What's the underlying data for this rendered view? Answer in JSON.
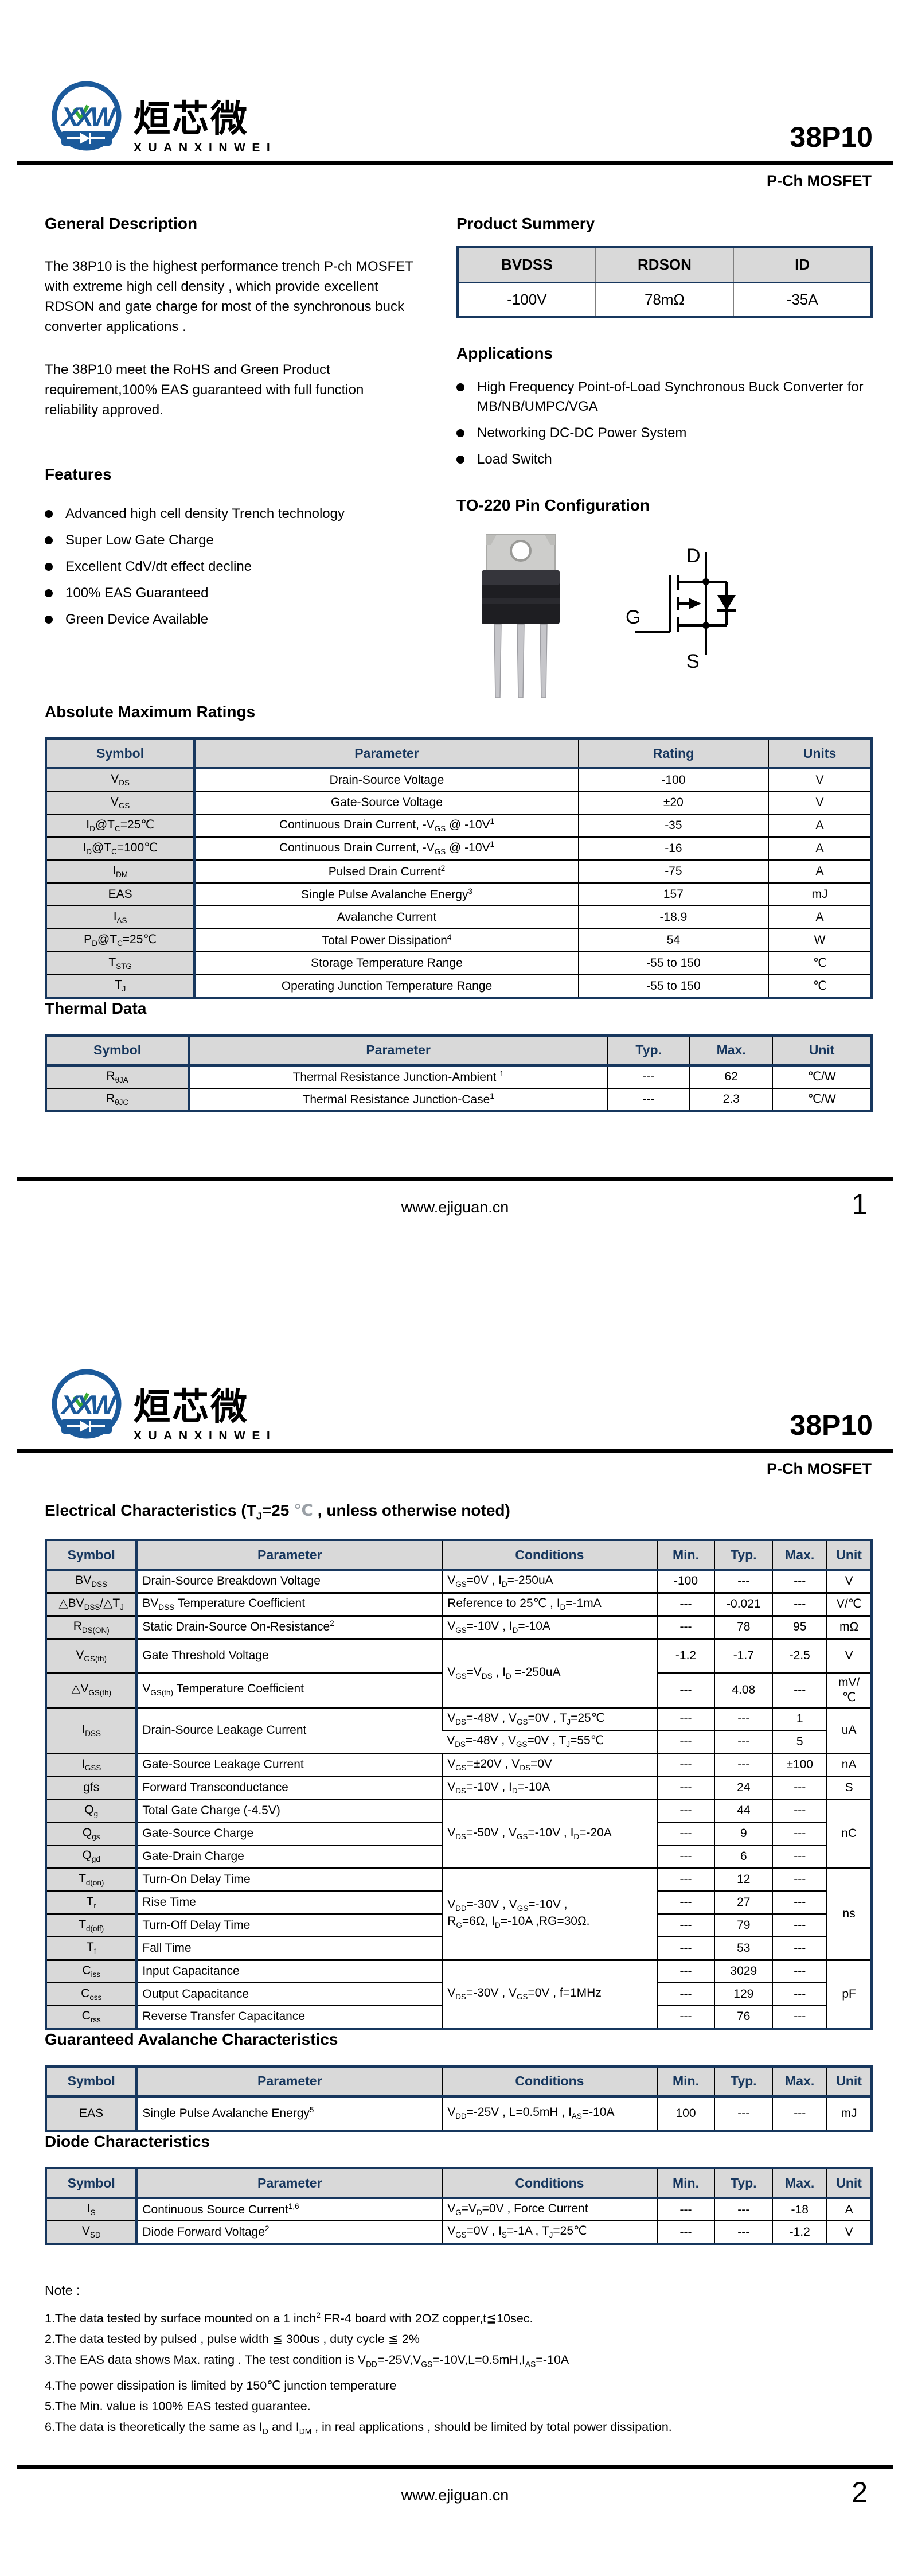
{
  "brand": {
    "logo_monogram": "XXW",
    "logo_cn": "烜芯微",
    "logo_en": "XUANXINWEI",
    "part_number": "38P10",
    "device_type": "P-Ch MOSFET"
  },
  "colors": {
    "navy": "#17375e",
    "logo_blue": "#1b5a9b",
    "logo_green": "#3aa935",
    "header_gray": "#d9d9d9"
  },
  "footer": {
    "website": "www.ejiguan.cn",
    "page1_number": "1",
    "page2_number": "2"
  },
  "page1": {
    "general_description": {
      "title": "General Description",
      "para1": "The  38P10  is the highest performance trench P-ch MOSFET with extreme high cell density , which provide excellent RDSON and gate charge for most of the synchronous buck converter applications .",
      "para2": "The  38P10  meet the RoHS and Green Product requirement,100% EAS guaranteed with full function reliability approved."
    },
    "features": {
      "title": "Features",
      "items": [
        "Advanced high cell density Trench technology",
        "Super Low Gate Charge",
        "Excellent CdV/dt effect decline",
        "100% EAS Guaranteed",
        "Green Device Available"
      ]
    },
    "product_summary": {
      "title": "Product Summery",
      "headers": [
        "BVDSS",
        "RDSON",
        "ID"
      ],
      "values": [
        "-100V",
        "78mΩ",
        "-35A"
      ]
    },
    "applications": {
      "title": "Applications",
      "items": [
        "High Frequency Point-of-Load Synchronous Buck Converter for MB/NB/UMPC/VGA",
        "Networking DC-DC Power System",
        "Load Switch"
      ]
    },
    "pin_config": {
      "title": "TO-220 Pin Configuration",
      "drain_label": "D",
      "gate_label": "G",
      "source_label": "S"
    },
    "amr": {
      "title": "Absolute Maximum Ratings",
      "headers": [
        "Symbol",
        "Parameter",
        "Rating",
        "Units"
      ],
      "rows": [
        {
          "sym": "V<sub>DS</sub>",
          "par": "Drain-Source Voltage",
          "rating": "-100",
          "unit": "V"
        },
        {
          "sym": "V<sub>GS</sub>",
          "par": "Gate-Source Voltage",
          "rating": "±20",
          "unit": "V"
        },
        {
          "sym": "I<sub>D</sub>@T<sub>C</sub>=25℃",
          "par": "Continuous Drain Current, -V<sub>GS</sub> @ -10V<sup>1</sup>",
          "rating": "-35",
          "unit": "A"
        },
        {
          "sym": "I<sub>D</sub>@T<sub>C</sub>=100℃",
          "par": "Continuous Drain Current, -V<sub>GS</sub> @ -10V<sup>1</sup>",
          "rating": "-16",
          "unit": "A"
        },
        {
          "sym": "I<sub>DM</sub>",
          "par": "Pulsed Drain Current<sup>2</sup>",
          "rating": "-75",
          "unit": "A"
        },
        {
          "sym": "EAS",
          "par": "Single Pulse Avalanche Energy<sup>3</sup>",
          "rating": "157",
          "unit": "mJ"
        },
        {
          "sym": "I<sub>AS</sub>",
          "par": "Avalanche Current",
          "rating": "-18.9",
          "unit": "A"
        },
        {
          "sym": "P<sub>D</sub>@T<sub>C</sub>=25℃",
          "par": "Total Power Dissipation<sup>4</sup>",
          "rating": "54",
          "unit": "W"
        },
        {
          "sym": "T<sub>STG</sub>",
          "par": "Storage Temperature Range",
          "rating": "-55 to 150",
          "unit": "℃"
        },
        {
          "sym": "T<sub>J</sub>",
          "par": "Operating Junction Temperature Range",
          "rating": "-55 to 150",
          "unit": "℃"
        }
      ]
    },
    "thermal": {
      "title": "Thermal Data",
      "headers": [
        "Symbol",
        "Parameter",
        "Typ.",
        "Max.",
        "Unit"
      ],
      "rows": [
        {
          "sym": "R<sub>θJA</sub>",
          "par": "Thermal Resistance Junction-Ambient <sup>1</sup>",
          "typ": "---",
          "max": "62",
          "unit": "℃/W"
        },
        {
          "sym": "R<sub>θJC</sub>",
          "par": "Thermal Resistance Junction-Case<sup>1</sup>",
          "typ": "---",
          "max": "2.3",
          "unit": "℃/W"
        }
      ]
    }
  },
  "page2": {
    "ec": {
      "title_html": "Electrical Characteristics (T<sub>J</sub>=25 <span class=\"light\">℃</span> , unless otherwise noted)",
      "headers": [
        "Symbol",
        "Parameter",
        "Conditions",
        "Min.",
        "Typ.",
        "Max.",
        "Unit"
      ],
      "rows": [
        {
          "sym": "BV<sub>DSS</sub>",
          "par": "Drain-Source Breakdown Voltage",
          "cond": "V<sub>GS</sub>=0V , I<sub>D</sub>=-250uA",
          "min": "-100",
          "typ": "---",
          "max": "---",
          "unit": "V"
        },
        {
          "sym": "△BV<sub>DSS</sub>/△T<sub>J</sub>",
          "par": "BV<sub>DSS</sub> Temperature Coefficient",
          "cond": "Reference to 25℃ , I<sub>D</sub>=-1mA",
          "min": "---",
          "typ": "-0.021",
          "max": "---",
          "unit": "V/℃"
        },
        {
          "sym": "R<sub>DS(ON)</sub>",
          "par": "Static Drain-Source On-Resistance<sup>2</sup>",
          "cond": "V<sub>GS</sub>=-10V , I<sub>D</sub>=-10A",
          "min": "---",
          "typ": "78",
          "max": "95",
          "unit": "mΩ"
        },
        {
          "sym": "V<sub>GS(th)</sub>",
          "par": "Gate Threshold Voltage",
          "cond": "V<sub>GS</sub>=V<sub>DS</sub> , I<sub>D</sub> =-250uA",
          "min": "-1.2",
          "typ": "-1.7",
          "max": "-2.5",
          "unit": "V"
        },
        {
          "sym": "△V<sub>GS(th)</sub>",
          "par": "V<sub>GS(th)</sub> Temperature Coefficient",
          "min": "---",
          "typ": "4.08",
          "max": "---",
          "unit": "mV/℃"
        },
        {
          "sym": "I<sub>DSS</sub>",
          "par": "Drain-Source Leakage Current",
          "cond": "V<sub>DS</sub>=-48V , V<sub>GS</sub>=0V , T<sub>J</sub>=25℃",
          "min": "---",
          "typ": "---",
          "max": "1",
          "unit": "uA"
        },
        {
          "cond": "V<sub>DS</sub>=-48V , V<sub>GS</sub>=0V , T<sub>J</sub>=55℃",
          "min": "---",
          "typ": "---",
          "max": "5"
        },
        {
          "sym": "I<sub>GSS</sub>",
          "par": "Gate-Source Leakage Current",
          "cond": "V<sub>GS</sub>=±20V , V<sub>DS</sub>=0V",
          "min": "---",
          "typ": "---",
          "max": "±100",
          "unit": "nA"
        },
        {
          "sym": "gfs",
          "par": "Forward Transconductance",
          "cond": "V<sub>DS</sub>=-10V , I<sub>D</sub>=-10A",
          "min": "---",
          "typ": "24",
          "max": "---",
          "unit": "S"
        },
        {
          "sym": "Q<sub>g</sub>",
          "par": "Total Gate Charge (-4.5V)",
          "cond": "V<sub>DS</sub>=-50V , V<sub>GS</sub>=-10V , I<sub>D</sub>=-20A",
          "min": "---",
          "typ": "44",
          "max": "---",
          "unit": "nC"
        },
        {
          "sym": "Q<sub>gs</sub>",
          "par": "Gate-Source Charge",
          "min": "---",
          "typ": "9",
          "max": "---"
        },
        {
          "sym": "Q<sub>gd</sub>",
          "par": "Gate-Drain Charge",
          "min": "---",
          "typ": "6",
          "max": "---"
        },
        {
          "sym": "T<sub>d(on)</sub>",
          "par": "Turn-On Delay Time",
          "cond": "V<sub>DD</sub>=-30V , V<sub>GS</sub>=-10V ,<br>R<sub>G</sub>=6Ω, I<sub>D</sub>=-10A ,RG=30Ω.",
          "min": "---",
          "typ": "12",
          "max": "---",
          "unit": "ns"
        },
        {
          "sym": "T<sub>r</sub>",
          "par": "Rise Time",
          "min": "---",
          "typ": "27",
          "max": "---"
        },
        {
          "sym": "T<sub>d(off)</sub>",
          "par": "Turn-Off Delay Time",
          "min": "---",
          "typ": "79",
          "max": "---"
        },
        {
          "sym": "T<sub>f</sub>",
          "par": "Fall Time",
          "min": "---",
          "typ": "53",
          "max": "---"
        },
        {
          "sym": "C<sub>iss</sub>",
          "par": "Input Capacitance",
          "cond": "V<sub>DS</sub>=-30V , V<sub>GS</sub>=0V , f=1MHz",
          "min": "---",
          "typ": "3029",
          "max": "---",
          "unit": "pF"
        },
        {
          "sym": "C<sub>oss</sub>",
          "par": "Output Capacitance",
          "min": "---",
          "typ": "129",
          "max": "---"
        },
        {
          "sym": "C<sub>rss</sub>",
          "par": "Reverse Transfer Capacitance",
          "min": "---",
          "typ": "76",
          "max": "---"
        }
      ]
    },
    "gac": {
      "title": "Guaranteed Avalanche Characteristics",
      "headers": [
        "Symbol",
        "Parameter",
        "Conditions",
        "Min.",
        "Typ.",
        "Max.",
        "Unit"
      ],
      "rows": [
        {
          "sym": "EAS",
          "par": "Single Pulse Avalanche Energy<sup>5</sup>",
          "cond": "V<sub>DD</sub>=-25V , L=0.5mH , I<sub>AS</sub>=-10A",
          "min": "100",
          "typ": "---",
          "max": "---",
          "unit": "mJ"
        }
      ]
    },
    "diode": {
      "title": "Diode Characteristics",
      "headers": [
        "Symbol",
        "Parameter",
        "Conditions",
        "Min.",
        "Typ.",
        "Max.",
        "Unit"
      ],
      "rows": [
        {
          "sym": "I<sub>S</sub>",
          "par": "Continuous Source Current<sup>1,6</sup>",
          "cond": "V<sub>G</sub>=V<sub>D</sub>=0V , Force Current",
          "min": "---",
          "typ": "---",
          "max": "-18",
          "unit": "A"
        },
        {
          "sym": "V<sub>SD</sub>",
          "par": "Diode Forward Voltage<sup>2</sup>",
          "cond": "V<sub>GS</sub>=0V , I<sub>S</sub>=-1A , T<sub>J</sub>=25℃",
          "min": "---",
          "typ": "---",
          "max": "-1.2",
          "unit": "V"
        }
      ]
    },
    "notes": {
      "title": "Note :",
      "items": [
        "1.The data tested by surface mounted on a 1 inch<sup>2</sup> FR-4 board with 2OZ copper,t≦10sec.",
        "2.The data tested by pulsed , pulse width ≦ 300us , duty cycle ≦ 2%",
        "3.The EAS data shows Max. rating . The test condition is V<sub>DD</sub>=-25V,V<sub>GS</sub>=-10V,L=0.5mH,I<sub>AS</sub>=-10A",
        "4.The power dissipation is limited by 150℃  junction temperature",
        "5.The Min. value is 100% EAS tested guarantee.",
        "6.The data is theoretically the same as I<sub>D</sub> and I<sub>DM</sub> , in real applications , should be limited by total power dissipation."
      ]
    }
  }
}
